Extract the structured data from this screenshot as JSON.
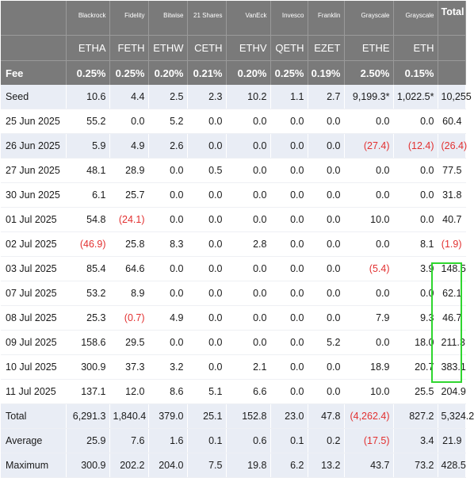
{
  "columns": [
    {
      "issuer": "Blackrock",
      "ticker": "ETHA",
      "fee": "0.25%"
    },
    {
      "issuer": "Fidelity",
      "ticker": "FETH",
      "fee": "0.25%"
    },
    {
      "issuer": "Bitwise",
      "ticker": "ETHW",
      "fee": "0.20%"
    },
    {
      "issuer": "21 Shares",
      "ticker": "CETH",
      "fee": "0.21%"
    },
    {
      "issuer": "VanEck",
      "ticker": "ETHV",
      "fee": "0.20%"
    },
    {
      "issuer": "Invesco",
      "ticker": "QETH",
      "fee": "0.25%"
    },
    {
      "issuer": "Franklin",
      "ticker": "EZET",
      "fee": "0.19%"
    },
    {
      "issuer": "Grayscale",
      "ticker": "ETHE",
      "fee": "2.50%"
    },
    {
      "issuer": "Grayscale",
      "ticker": "ETH",
      "fee": "0.15%"
    }
  ],
  "total_header": "Total",
  "fee_label": "Fee",
  "rows": [
    {
      "label": "Seed",
      "shade": true,
      "values": [
        "10.6",
        "4.4",
        "2.5",
        "2.3",
        "10.2",
        "1.1",
        "2.7",
        "9,199.3*",
        "1,022.5*",
        "10,255"
      ],
      "neg": []
    },
    {
      "label": "25 Jun 2025",
      "shade": false,
      "values": [
        "55.2",
        "0.0",
        "5.2",
        "0.0",
        "0.0",
        "0.0",
        "0.0",
        "0.0",
        "0.0",
        "60.4"
      ],
      "neg": []
    },
    {
      "label": "26 Jun 2025",
      "shade": true,
      "values": [
        "5.9",
        "4.9",
        "2.6",
        "0.0",
        "0.0",
        "0.0",
        "0.0",
        "(27.4)",
        "(12.4)",
        "(26.4)"
      ],
      "neg": [
        7,
        8,
        9
      ]
    },
    {
      "label": "27 Jun 2025",
      "shade": false,
      "values": [
        "48.1",
        "28.9",
        "0.0",
        "0.5",
        "0.0",
        "0.0",
        "0.0",
        "0.0",
        "0.0",
        "77.5"
      ],
      "neg": []
    },
    {
      "label": "30 Jun 2025",
      "shade": false,
      "values": [
        "6.1",
        "25.7",
        "0.0",
        "0.0",
        "0.0",
        "0.0",
        "0.0",
        "0.0",
        "0.0",
        "31.8"
      ],
      "neg": []
    },
    {
      "label": "01 Jul 2025",
      "shade": false,
      "values": [
        "54.8",
        "(24.1)",
        "0.0",
        "0.0",
        "0.0",
        "0.0",
        "0.0",
        "10.0",
        "0.0",
        "40.7"
      ],
      "neg": [
        1
      ]
    },
    {
      "label": "02 Jul 2025",
      "shade": false,
      "values": [
        "(46.9)",
        "25.8",
        "8.3",
        "0.0",
        "2.8",
        "0.0",
        "0.0",
        "0.0",
        "8.1",
        "(1.9)"
      ],
      "neg": [
        0,
        9
      ]
    },
    {
      "label": "03 Jul 2025",
      "shade": false,
      "values": [
        "85.4",
        "64.6",
        "0.0",
        "0.0",
        "0.0",
        "0.0",
        "0.0",
        "(5.4)",
        "3.9",
        "148.5"
      ],
      "neg": [
        7
      ]
    },
    {
      "label": "07 Jul 2025",
      "shade": false,
      "values": [
        "53.2",
        "8.9",
        "0.0",
        "0.0",
        "0.0",
        "0.0",
        "0.0",
        "0.0",
        "0.0",
        "62.1"
      ],
      "neg": []
    },
    {
      "label": "08 Jul 2025",
      "shade": false,
      "values": [
        "25.3",
        "(0.7)",
        "4.9",
        "0.0",
        "0.0",
        "0.0",
        "0.0",
        "7.9",
        "9.3",
        "46.7"
      ],
      "neg": [
        1
      ]
    },
    {
      "label": "09 Jul 2025",
      "shade": false,
      "values": [
        "158.6",
        "29.5",
        "0.0",
        "0.0",
        "0.0",
        "0.0",
        "5.2",
        "0.0",
        "18.0",
        "211.3"
      ],
      "neg": []
    },
    {
      "label": "10 Jul 2025",
      "shade": false,
      "values": [
        "300.9",
        "37.3",
        "3.2",
        "0.0",
        "2.1",
        "0.0",
        "0.0",
        "18.9",
        "20.7",
        "383.1"
      ],
      "neg": []
    },
    {
      "label": "11 Jul 2025",
      "shade": false,
      "values": [
        "137.1",
        "12.0",
        "8.6",
        "5.1",
        "6.6",
        "0.0",
        "0.0",
        "10.0",
        "25.5",
        "204.9"
      ],
      "neg": []
    },
    {
      "label": "Total",
      "shade": true,
      "values": [
        "6,291.3",
        "1,840.4",
        "379.0",
        "25.1",
        "152.8",
        "23.0",
        "47.8",
        "(4,262.4)",
        "827.2",
        "5,324.2"
      ],
      "neg": [
        7
      ]
    },
    {
      "label": "Average",
      "shade": true,
      "values": [
        "25.9",
        "7.6",
        "1.6",
        "0.1",
        "0.6",
        "0.1",
        "0.2",
        "(17.5)",
        "3.4",
        "21.9"
      ],
      "neg": [
        7
      ]
    },
    {
      "label": "Maximum",
      "shade": true,
      "values": [
        "300.9",
        "202.2",
        "204.0",
        "7.5",
        "19.8",
        "6.2",
        "13.2",
        "43.7",
        "73.2",
        "428.5"
      ],
      "neg": []
    }
  ],
  "colors": {
    "header_bg": "#7a7a7a",
    "shade_bg": "#e9edf5",
    "negative": "#e23030",
    "highlight": "#2fd62f"
  }
}
